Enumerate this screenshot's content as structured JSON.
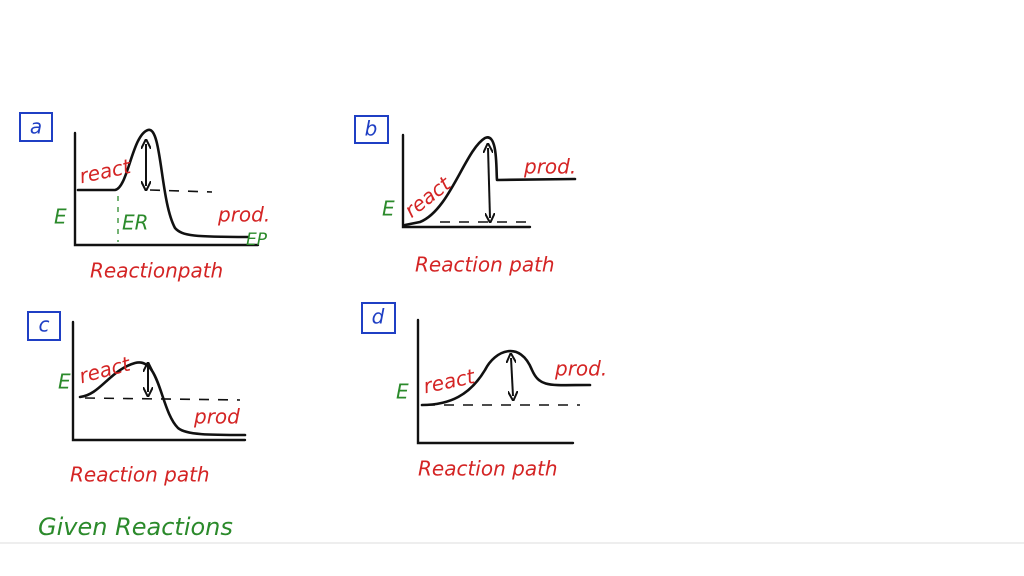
{
  "panels": [
    {
      "label": "a",
      "energy": "E",
      "reactant": "react",
      "product": "prod.",
      "er": "ER",
      "ep": "EP",
      "x_label": "Reactionpath"
    },
    {
      "label": "b",
      "energy": "E",
      "reactant": "react",
      "product": "prod.",
      "x_label": "Reaction path"
    },
    {
      "label": "c",
      "energy": "E",
      "reactant": "react",
      "product": "prod",
      "x_label": "Reaction path"
    },
    {
      "label": "d",
      "energy": "E",
      "reactant": "react",
      "product": "prod.",
      "x_label": "Reaction path"
    }
  ],
  "footer": "Given Reactions"
}
